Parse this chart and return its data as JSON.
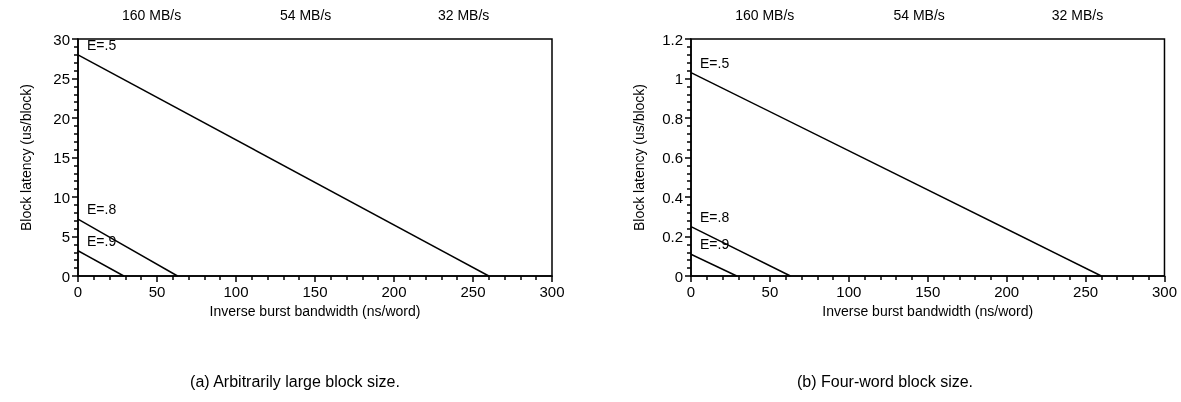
{
  "chart_data": [
    {
      "type": "line",
      "title": "(a) Arbitrarily large block size.",
      "xlabel": "Inverse burst bandwidth (ns/word)",
      "ylabel": "Block latency (us/block)",
      "xlim": [
        0,
        300
      ],
      "xticks": [
        0,
        50,
        100,
        150,
        200,
        250,
        300
      ],
      "ylim": [
        0,
        30
      ],
      "yticks": [
        0,
        5,
        10,
        15,
        20,
        25,
        30
      ],
      "annotations": [
        "160 MB/s",
        "54 MB/s",
        "32 MB/s"
      ],
      "grid": false,
      "legend": false,
      "marker": "none",
      "line_style": "solid",
      "series": [
        {
          "name": "E=.5",
          "color": "#000000",
          "x": [
            0,
            260
          ],
          "values": [
            28,
            0
          ]
        },
        {
          "name": "E=.8",
          "color": "#000000",
          "x": [
            0,
            63
          ],
          "values": [
            7.2,
            0
          ]
        },
        {
          "name": "E=.9",
          "color": "#000000",
          "x": [
            0,
            29
          ],
          "values": [
            3.2,
            0
          ]
        }
      ]
    },
    {
      "type": "line",
      "title": "(b) Four-word block size.",
      "xlabel": "Inverse burst bandwidth (ns/word)",
      "ylabel": "Block latency (us/block)",
      "xlim": [
        0,
        300
      ],
      "xticks": [
        0,
        50,
        100,
        150,
        200,
        250,
        300
      ],
      "ylim": [
        0,
        1.2
      ],
      "yticks": [
        0,
        0.2,
        0.4,
        0.6,
        0.8,
        1,
        1.2
      ],
      "annotations": [
        "160 MB/s",
        "54 MB/s",
        "32 MB/s"
      ],
      "grid": false,
      "legend": false,
      "marker": "none",
      "line_style": "solid",
      "series": [
        {
          "name": "E=.5",
          "color": "#000000",
          "x": [
            0,
            260
          ],
          "values": [
            1.03,
            0
          ]
        },
        {
          "name": "E=.8",
          "color": "#000000",
          "x": [
            0,
            63
          ],
          "values": [
            0.25,
            0
          ]
        },
        {
          "name": "E=.9",
          "color": "#000000",
          "x": [
            0,
            29
          ],
          "values": [
            0.11,
            0
          ]
        }
      ]
    }
  ]
}
